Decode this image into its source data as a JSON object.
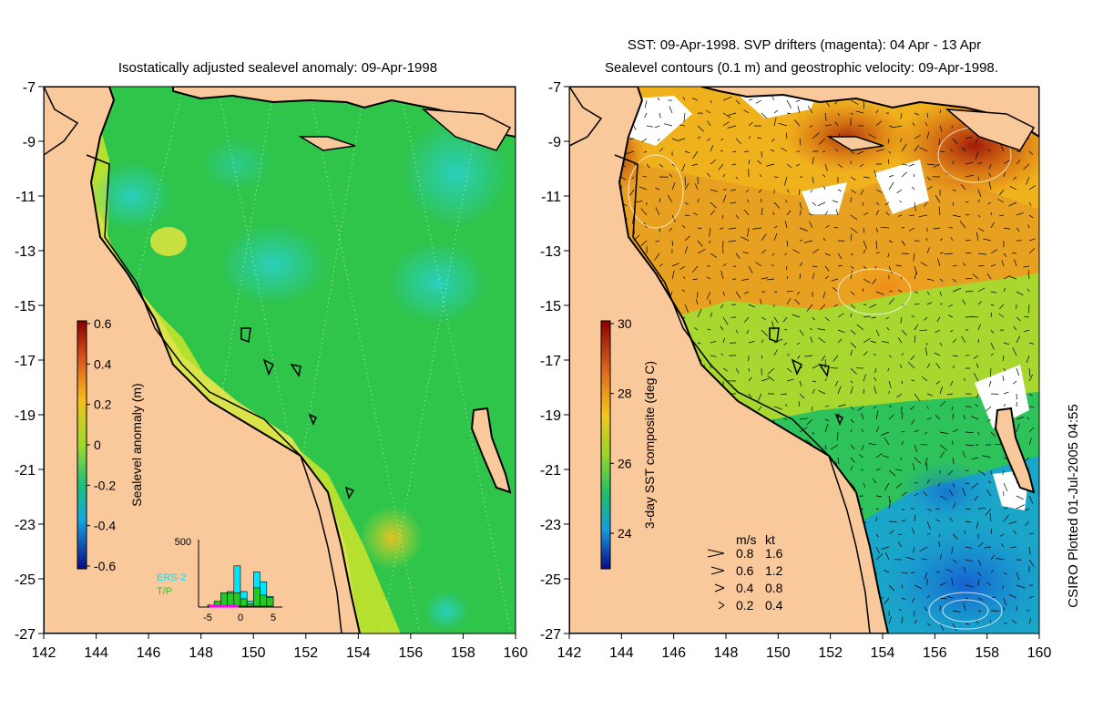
{
  "left_panel": {
    "title": "Isostatically adjusted sealevel anomaly: 09-Apr-1998",
    "colorbar": {
      "label": "Sealevel anomaly (m)",
      "ticks": [
        "0.6",
        "0.4",
        "0.2",
        "0",
        "-0.2",
        "-0.4",
        "-0.6"
      ]
    },
    "histogram": {
      "ymax_label": "500",
      "xticks": [
        "-5",
        "0",
        "5"
      ],
      "legend": [
        "ERS-2",
        "T/P"
      ],
      "ers2_color": "#00e5ff",
      "tp_color": "#22cc22",
      "marker_color": "#ff00ff",
      "bins": [
        -5,
        -4,
        -3,
        -2,
        -1,
        0,
        1,
        2,
        3,
        4
      ],
      "ers2_counts": [
        0,
        5,
        40,
        120,
        330,
        120,
        40,
        280,
        200,
        80
      ],
      "tp_counts": [
        10,
        40,
        110,
        110,
        110,
        60,
        20,
        150,
        90,
        70
      ]
    }
  },
  "right_panel": {
    "title_line1": "SST: 09-Apr-1998. SVP drifters (magenta): 04 Apr - 13 Apr",
    "title_line2": "Sealevel contours (0.1 m) and geostrophic velocity: 09-Apr-1998.",
    "colorbar": {
      "label": "3-day SST composite (deg C)",
      "ticks": [
        "30",
        "28",
        "26",
        "24"
      ]
    },
    "velocity_legend": {
      "header_ms": "m/s",
      "header_kt": "kt",
      "rows": [
        {
          "ms": "0.8",
          "kt": "1.6"
        },
        {
          "ms": "0.6",
          "kt": "1.2"
        },
        {
          "ms": "0.4",
          "kt": "0.8"
        },
        {
          "ms": "0.2",
          "kt": "0.4"
        }
      ]
    }
  },
  "axes": {
    "lat_ticks": [
      "-7",
      "-9",
      "-11",
      "-13",
      "-15",
      "-17",
      "-19",
      "-21",
      "-23",
      "-25",
      "-27"
    ],
    "lon_ticks": [
      "142",
      "144",
      "146",
      "148",
      "150",
      "152",
      "154",
      "156",
      "158",
      "160"
    ],
    "lat_values": [
      -7,
      -9,
      -11,
      -13,
      -15,
      -17,
      -19,
      -21,
      -23,
      -25,
      -27
    ],
    "lon_values": [
      142,
      144,
      146,
      148,
      150,
      152,
      154,
      156,
      158,
      160
    ]
  },
  "credit": "CSIRO Plotted 01-Jul-2005 04:55",
  "colors": {
    "land": "#f9c89b",
    "ocean_sla": "#2fc44a",
    "ocean_sst_warm": "#f2a21c",
    "ocean_sst_cool": "#1a8ad8"
  }
}
